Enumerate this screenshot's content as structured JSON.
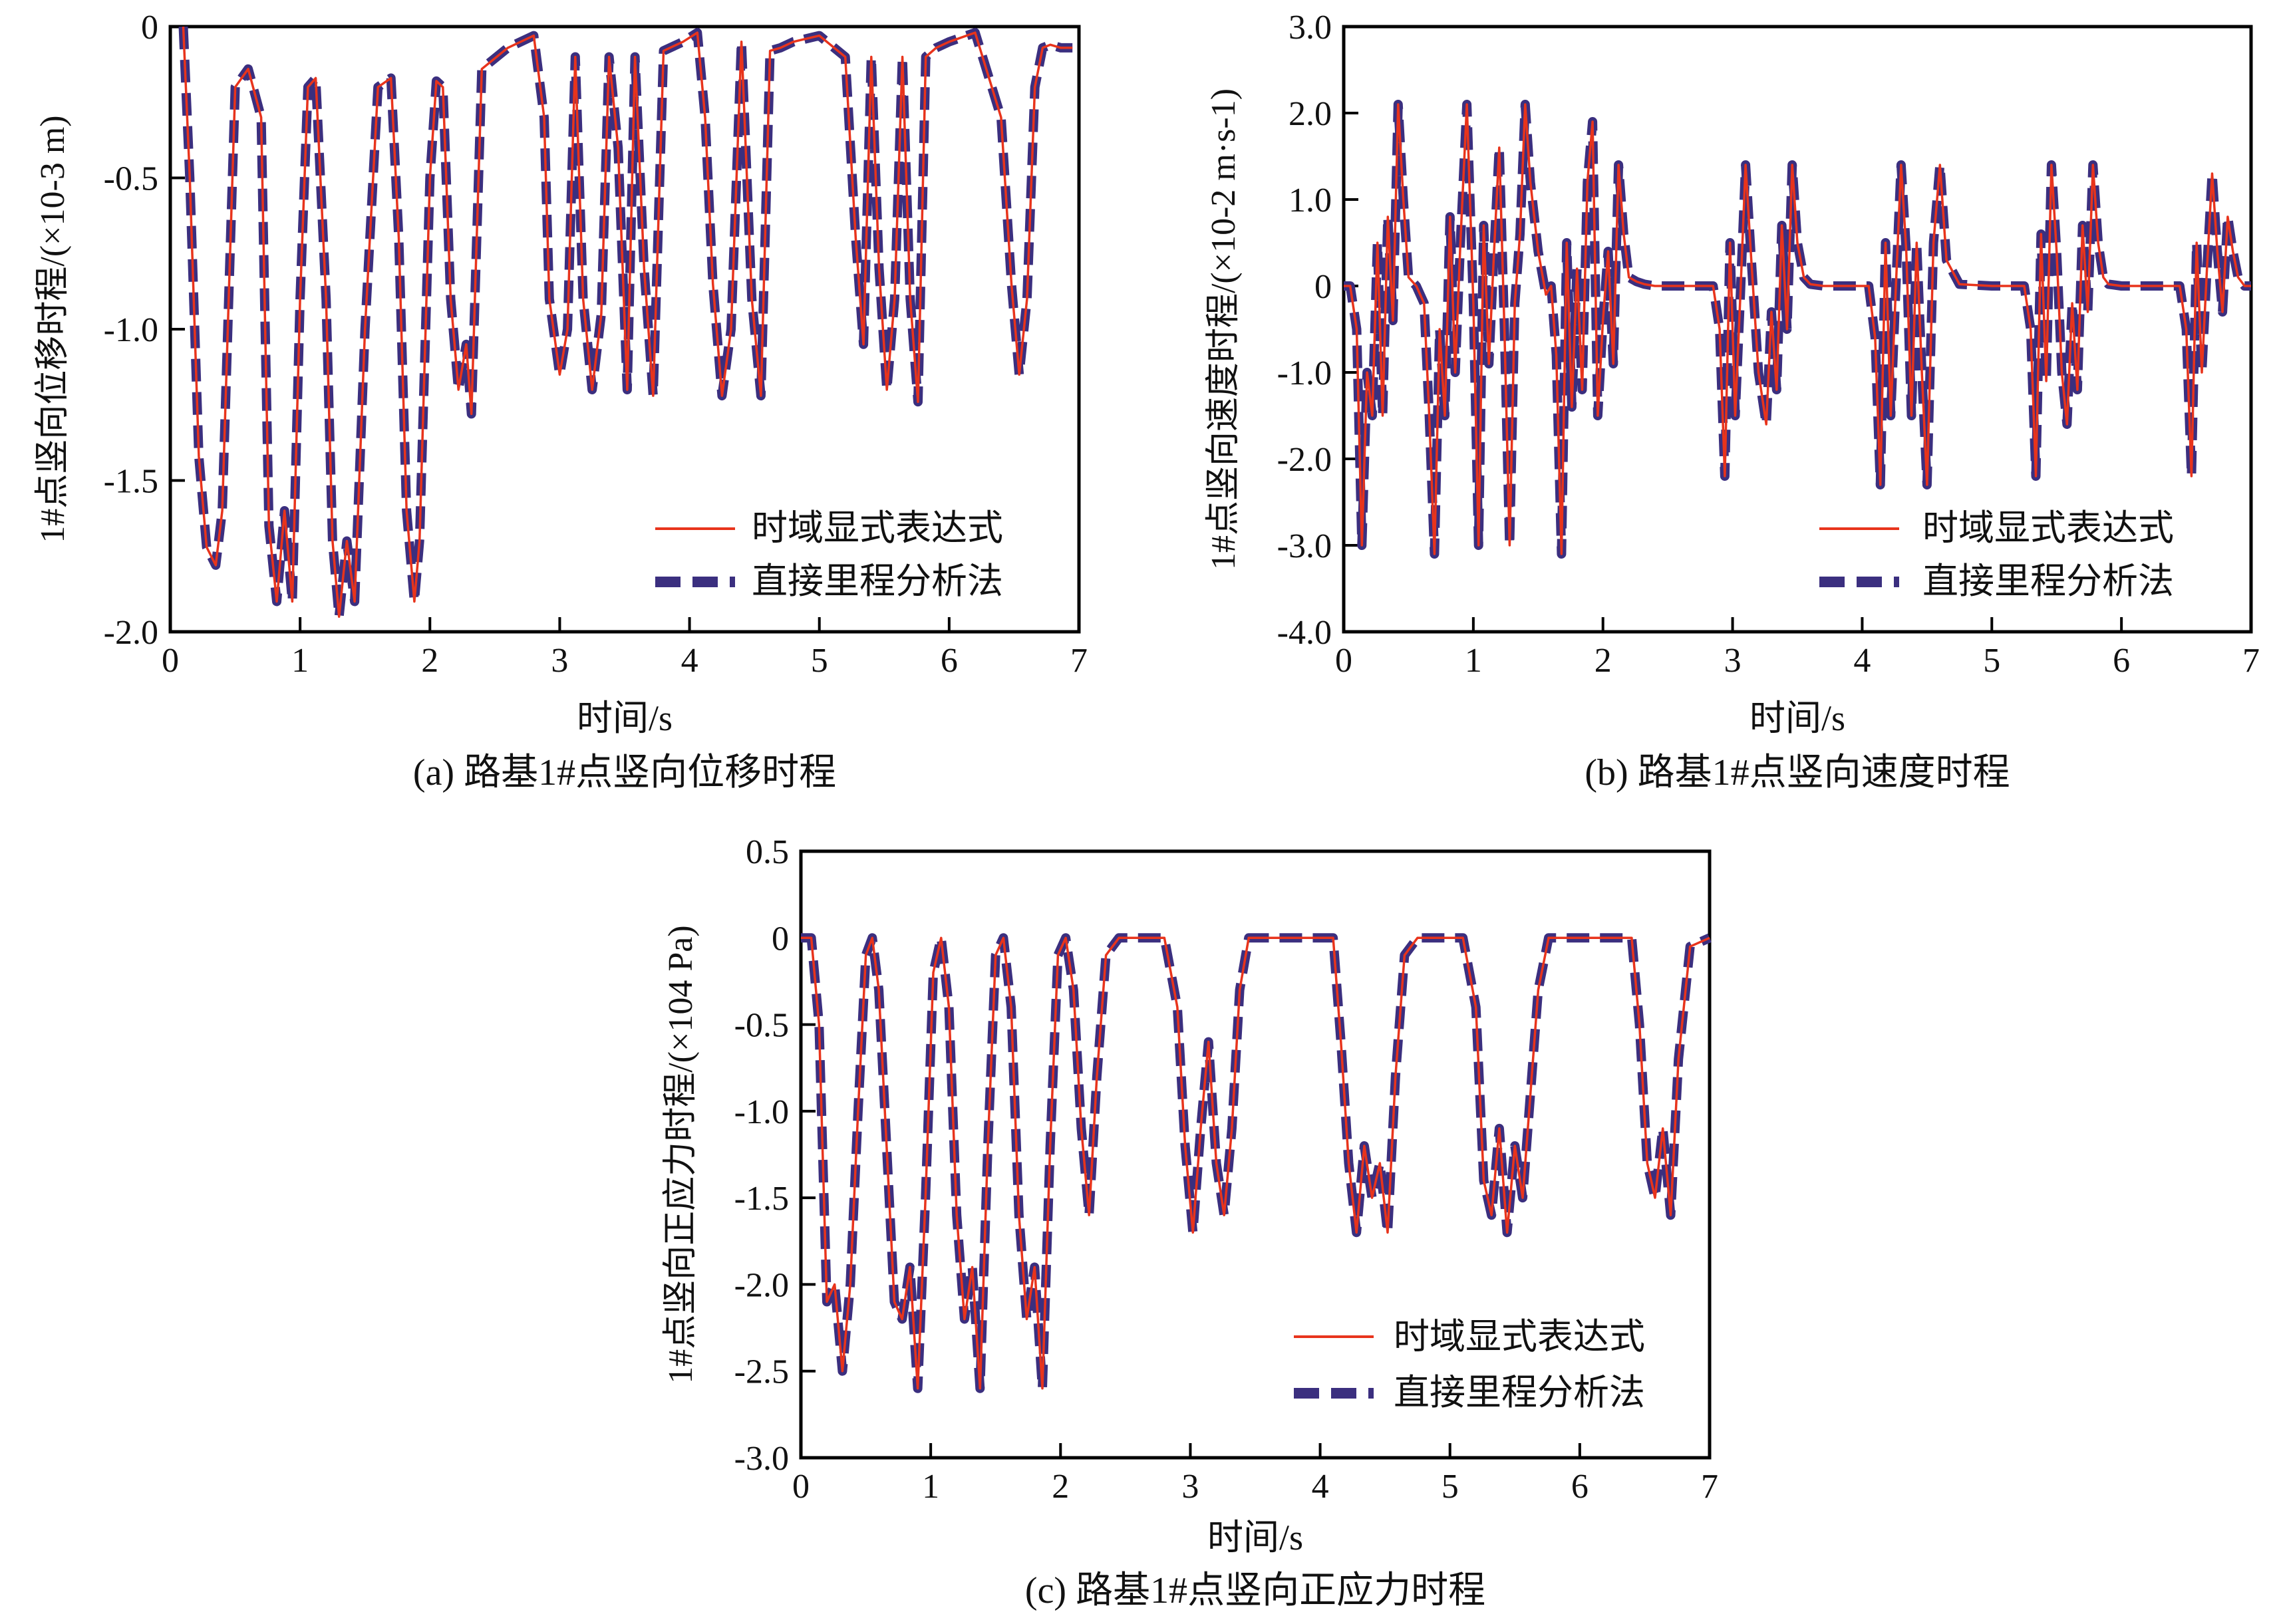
{
  "figure": {
    "legend": {
      "series1": "时域显式表达式",
      "series2": "直接里程分析法"
    },
    "colors": {
      "series1": "#e8341c",
      "series2": "#3b2f7f",
      "axis": "#000000"
    }
  },
  "chart_data": [
    {
      "id": "a",
      "type": "line",
      "caption": "(a) 路基1#点竖向位移时程",
      "xlabel": "时间/s",
      "ylabel": "1#点竖向位移时程/(×10-3 m)",
      "xlim": [
        0,
        7
      ],
      "ylim": [
        -2.0,
        0
      ],
      "x_ticks": [
        "0",
        "1",
        "2",
        "3",
        "4",
        "5",
        "6",
        "7"
      ],
      "y_ticks": [
        "0",
        "-0.5",
        "-1.0",
        "-1.5",
        "-2.0"
      ],
      "legend_position": "bottom-right",
      "series": [
        {
          "name": "时域显式表达式",
          "style": "solid",
          "x": [
            0.1,
            0.15,
            0.22,
            0.28,
            0.35,
            0.4,
            0.45,
            0.5,
            0.6,
            0.7,
            0.76,
            0.82,
            0.88,
            0.94,
            1.0,
            1.06,
            1.12,
            1.2,
            1.25,
            1.3,
            1.36,
            1.42,
            1.5,
            1.6,
            1.7,
            1.76,
            1.82,
            1.88,
            1.92,
            2.0,
            2.05,
            2.1,
            2.16,
            2.22,
            2.28,
            2.32,
            2.4,
            2.6,
            2.8,
            2.88,
            2.92,
            3.0,
            3.06,
            3.12,
            3.18,
            3.25,
            3.32,
            3.38,
            3.45,
            3.52,
            3.58,
            3.65,
            3.72,
            3.8,
            3.95,
            4.06,
            4.12,
            4.18,
            4.25,
            4.32,
            4.4,
            4.48,
            4.55,
            4.62,
            4.7,
            4.8,
            5.0,
            5.2,
            5.28,
            5.34,
            5.4,
            5.46,
            5.52,
            5.58,
            5.64,
            5.7,
            5.76,
            5.82,
            5.9,
            6.0,
            6.2,
            6.4,
            6.48,
            6.54,
            6.6,
            6.66,
            6.72,
            6.78,
            6.86,
            6.95
          ],
          "values": [
            0,
            -0.5,
            -1.42,
            -1.72,
            -1.78,
            -1.6,
            -0.9,
            -0.2,
            -0.14,
            -0.3,
            -1.65,
            -1.9,
            -1.6,
            -1.9,
            -0.9,
            -0.2,
            -0.17,
            -0.9,
            -1.7,
            -1.95,
            -1.7,
            -1.9,
            -1.0,
            -0.2,
            -0.17,
            -0.7,
            -1.6,
            -1.9,
            -1.7,
            -0.5,
            -0.18,
            -0.2,
            -0.9,
            -1.2,
            -1.05,
            -1.28,
            -0.14,
            -0.07,
            -0.03,
            -0.3,
            -0.9,
            -1.15,
            -1.0,
            -0.1,
            -0.9,
            -1.2,
            -0.95,
            -0.1,
            -0.4,
            -1.2,
            -0.1,
            -0.8,
            -1.22,
            -0.08,
            -0.05,
            -0.02,
            -0.3,
            -0.85,
            -1.22,
            -1.0,
            -0.05,
            -0.9,
            -1.22,
            -0.08,
            -0.07,
            -0.05,
            -0.03,
            -0.1,
            -0.7,
            -1.05,
            -0.1,
            -0.8,
            -1.2,
            -0.9,
            -0.1,
            -0.9,
            -1.24,
            -0.1,
            -0.07,
            -0.05,
            -0.02,
            -0.3,
            -0.85,
            -1.15,
            -0.9,
            -0.2,
            -0.07,
            -0.06,
            -0.07,
            -0.07
          ]
        },
        {
          "name": "直接里程分析法",
          "style": "dashed",
          "same_as": "时域显式表达式"
        }
      ]
    },
    {
      "id": "b",
      "type": "line",
      "caption": "(b) 路基1#点竖向速度时程",
      "xlabel": "时间/s",
      "ylabel": "1#点竖向速度时程/(×10-2 m·s-1)",
      "xlim": [
        0,
        7
      ],
      "ylim": [
        -4.0,
        3.0
      ],
      "x_ticks": [
        "0",
        "1",
        "2",
        "3",
        "4",
        "5",
        "6",
        "7"
      ],
      "y_ticks": [
        "3.0",
        "2.0",
        "1.0",
        "0",
        "-1.0",
        "-2.0",
        "-3.0",
        "-4.0"
      ],
      "legend_position": "bottom-right",
      "series": [
        {
          "name": "时域显式表达式",
          "style": "solid",
          "x": [
            0,
            0.05,
            0.1,
            0.14,
            0.18,
            0.22,
            0.26,
            0.3,
            0.34,
            0.38,
            0.42,
            0.46,
            0.5,
            0.56,
            0.62,
            0.66,
            0.7,
            0.74,
            0.78,
            0.82,
            0.86,
            0.9,
            0.95,
            1.0,
            1.04,
            1.08,
            1.12,
            1.16,
            1.2,
            1.24,
            1.28,
            1.32,
            1.36,
            1.4,
            1.44,
            1.5,
            1.56,
            1.6,
            1.64,
            1.68,
            1.72,
            1.76,
            1.8,
            1.84,
            1.88,
            1.92,
            1.96,
            2.0,
            2.04,
            2.08,
            2.12,
            2.16,
            2.2,
            2.26,
            2.32,
            2.4,
            2.5,
            2.7,
            2.85,
            2.9,
            2.94,
            2.98,
            3.02,
            3.06,
            3.1,
            3.14,
            3.2,
            3.26,
            3.3,
            3.34,
            3.38,
            3.42,
            3.46,
            3.5,
            3.55,
            3.6,
            3.7,
            3.9,
            4.05,
            4.1,
            4.14,
            4.18,
            4.22,
            4.26,
            4.3,
            4.34,
            4.38,
            4.42,
            4.46,
            4.5,
            4.55,
            4.6,
            4.65,
            4.75,
            5.0,
            5.25,
            5.3,
            5.34,
            5.38,
            5.42,
            5.46,
            5.5,
            5.54,
            5.58,
            5.62,
            5.66,
            5.7,
            5.74,
            5.78,
            5.82,
            5.86,
            5.9,
            6.0,
            6.2,
            6.45,
            6.5,
            6.54,
            6.58,
            6.62,
            6.66,
            6.7,
            6.74,
            6.78,
            6.82,
            6.86,
            6.9,
            6.95,
            7.0
          ],
          "values": [
            0,
            0,
            -0.5,
            -3.0,
            -1.0,
            -1.5,
            0.5,
            -1.5,
            0.8,
            -0.4,
            2.1,
            1.0,
            0.1,
            0.0,
            -0.2,
            -1.5,
            -3.1,
            -0.5,
            -1.5,
            0.8,
            -1.0,
            0.5,
            2.1,
            -0.2,
            -3.0,
            0.7,
            -0.9,
            0.4,
            1.6,
            -0.5,
            -3.0,
            -0.2,
            0.6,
            2.1,
            1.2,
            0.4,
            -0.1,
            0.0,
            -0.8,
            -3.1,
            0.5,
            -1.4,
            0.2,
            -1.2,
            1.2,
            1.9,
            -1.5,
            -0.4,
            0.4,
            -0.9,
            1.4,
            0.6,
            0.1,
            0.05,
            0.02,
            0,
            0,
            0,
            0,
            -0.5,
            -2.2,
            0.5,
            -1.5,
            -0.1,
            1.4,
            0.4,
            -1.0,
            -1.6,
            -0.3,
            -1.2,
            0.7,
            -0.5,
            1.4,
            0.5,
            0.1,
            0.02,
            0,
            0,
            0,
            -0.6,
            -2.3,
            0.5,
            -1.5,
            0.0,
            1.4,
            0.4,
            -1.5,
            0.5,
            -1.0,
            -2.3,
            0.5,
            1.4,
            0.3,
            0.02,
            0,
            0,
            -0.5,
            -2.2,
            0.6,
            -1.1,
            1.4,
            0.4,
            -1.0,
            -1.6,
            -0.2,
            -1.2,
            0.7,
            -0.3,
            1.4,
            0.5,
            0.1,
            0.02,
            0,
            0,
            0,
            -0.5,
            -2.2,
            0.5,
            -1.0,
            0.2,
            1.3,
            0.4,
            -0.3,
            0.8,
            0.4,
            0.1,
            0.0,
            0.0
          ]
        },
        {
          "name": "直接里程分析法",
          "style": "dashed",
          "same_as": "时域显式表达式"
        }
      ]
    },
    {
      "id": "c",
      "type": "line",
      "caption": "(c) 路基1#点竖向正应力时程",
      "xlabel": "时间/s",
      "ylabel": "1#点竖向正应力时程/(×104 Pa)",
      "xlim": [
        0,
        7
      ],
      "ylim": [
        -3.0,
        0.5
      ],
      "x_ticks": [
        "0",
        "1",
        "2",
        "3",
        "4",
        "5",
        "6",
        "7"
      ],
      "y_ticks": [
        "0.5",
        "0",
        "-0.5",
        "-1.0",
        "-1.5",
        "-2.0",
        "-2.5",
        "-3.0"
      ],
      "legend_position": "bottom-right",
      "series": [
        {
          "name": "时域显式表达式",
          "style": "solid",
          "x": [
            0,
            0.08,
            0.14,
            0.2,
            0.26,
            0.32,
            0.38,
            0.44,
            0.5,
            0.55,
            0.6,
            0.66,
            0.72,
            0.78,
            0.84,
            0.9,
            0.96,
            1.02,
            1.08,
            1.14,
            1.2,
            1.26,
            1.32,
            1.38,
            1.44,
            1.5,
            1.56,
            1.62,
            1.68,
            1.74,
            1.8,
            1.86,
            1.92,
            1.98,
            2.04,
            2.1,
            2.16,
            2.22,
            2.28,
            2.35,
            2.45,
            2.6,
            2.8,
            2.9,
            2.96,
            3.02,
            3.08,
            3.14,
            3.2,
            3.26,
            3.32,
            3.38,
            3.45,
            3.55,
            3.7,
            3.9,
            4.1,
            4.16,
            4.22,
            4.28,
            4.34,
            4.4,
            4.46,
            4.52,
            4.58,
            4.65,
            4.75,
            4.9,
            5.1,
            5.2,
            5.26,
            5.32,
            5.38,
            5.44,
            5.5,
            5.56,
            5.62,
            5.68,
            5.76,
            5.85,
            6.0,
            6.2,
            6.4,
            6.46,
            6.52,
            6.58,
            6.64,
            6.7,
            6.76,
            6.85,
            7.0
          ],
          "values": [
            0,
            0,
            -0.5,
            -2.1,
            -2.0,
            -2.5,
            -2.0,
            -1.0,
            -0.1,
            0,
            -0.3,
            -1.2,
            -2.1,
            -2.2,
            -1.9,
            -2.6,
            -1.5,
            -0.2,
            0,
            -0.4,
            -1.6,
            -2.2,
            -1.9,
            -2.6,
            -1.2,
            -0.1,
            0,
            -0.4,
            -1.6,
            -2.2,
            -1.9,
            -2.6,
            -1.2,
            -0.1,
            0,
            -0.3,
            -1.1,
            -1.6,
            -0.8,
            -0.1,
            0,
            0,
            0,
            -0.4,
            -1.2,
            -1.7,
            -1.1,
            -0.6,
            -1.3,
            -1.6,
            -1.1,
            -0.3,
            0,
            0,
            0,
            0,
            0,
            -0.6,
            -1.3,
            -1.7,
            -1.2,
            -1.5,
            -1.3,
            -1.7,
            -0.8,
            -0.1,
            0,
            0,
            0,
            -0.4,
            -1.4,
            -1.6,
            -1.1,
            -1.7,
            -1.2,
            -1.5,
            -0.9,
            -0.3,
            0,
            0,
            0,
            0,
            0,
            -0.5,
            -1.3,
            -1.5,
            -1.1,
            -1.6,
            -0.7,
            -0.05,
            0
          ]
        },
        {
          "name": "直接里程分析法",
          "style": "dashed",
          "same_as": "时域显式表达式"
        }
      ]
    }
  ]
}
